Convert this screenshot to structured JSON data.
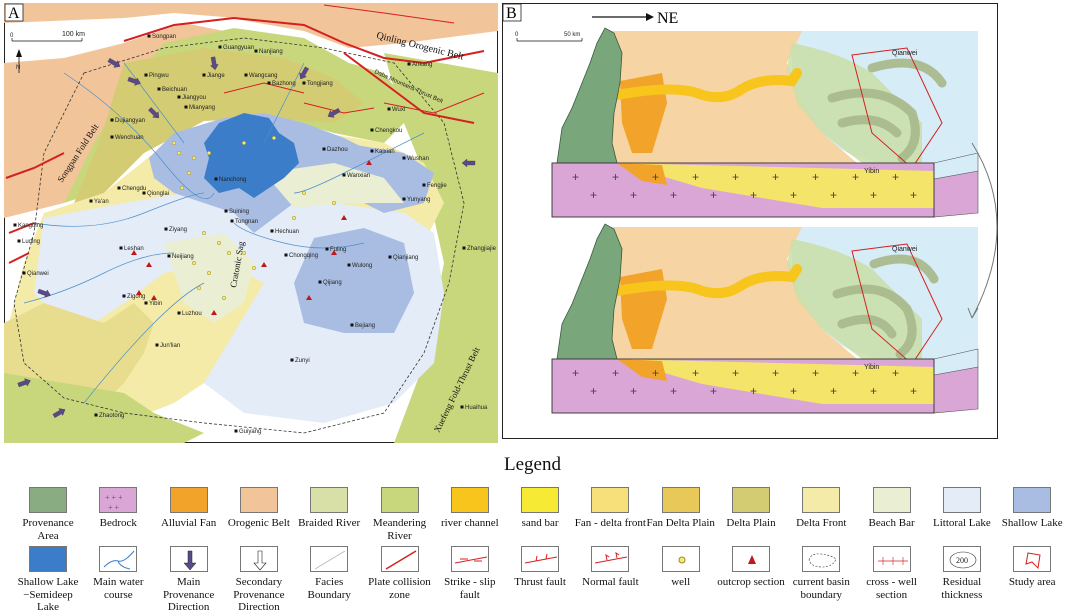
{
  "panel_a": {
    "label": "A",
    "scale": {
      "zero": "0",
      "end": "100 km"
    },
    "north": "N",
    "region_labels": [
      {
        "text": "Qinling Orogenic Belt",
        "style": "big"
      },
      {
        "text": "Daba Mountains Thrust Belt",
        "style": "rot"
      },
      {
        "text": "Songpan Fold Belt",
        "style": "rotbig"
      },
      {
        "text": "Cratonic Sag",
        "style": "rotbig"
      },
      {
        "text": "Xuefeng Fold-Thrust Belt",
        "style": "rotbig"
      }
    ],
    "towns": [
      "Songpan",
      "Pingwu",
      "Guangyuan",
      "Nanjiang",
      "Ankang",
      "Jiange",
      "Wangcang",
      "Beichuan",
      "Bazhong",
      "Tongjiang",
      "Mianyang",
      "Jiangyou",
      "Wenchuan",
      "Dujiangyan",
      "Chengdu",
      "Qionglai",
      "Ya'an",
      "Kangding",
      "Luding",
      "Ziyang",
      "Leshan",
      "Neijiang",
      "Yibin",
      "Zigong",
      "Luzhou",
      "Suining",
      "Nanchong",
      "Tongnan",
      "Hechuan",
      "Dazhou",
      "Wanxian",
      "Kaixian",
      "Wuxi",
      "Chengkou",
      "Wushan",
      "Yunyang",
      "Fengjie",
      "Fuling",
      "Chongqing",
      "Wulong",
      "Qianjiang",
      "Zhangjiajie",
      "Qijiang",
      "Bejiang",
      "Zunyi",
      "Jun'lian",
      "Zhaotong",
      "Qianwei",
      "Huaihua",
      "Guiyang"
    ]
  },
  "panel_b": {
    "label": "B",
    "direction": "NE",
    "scale": {
      "zero": "0",
      "end": "50 km"
    },
    "places": [
      "Qianwei",
      "Yibin",
      "Qianwei",
      "Yibin"
    ]
  },
  "legend": {
    "title": "Legend",
    "row1": [
      {
        "label": "Provenance Area",
        "swatch": "fill",
        "color": "#8aac82"
      },
      {
        "label": "Bedrock",
        "swatch": "bedrock",
        "color": "#d9a6d6"
      },
      {
        "label": "Alluvial Fan",
        "swatch": "fill",
        "color": "#f2a32a"
      },
      {
        "label": "Orogenic Belt",
        "swatch": "fill",
        "color": "#f2c49a"
      },
      {
        "label": "Braided River",
        "swatch": "fill",
        "color": "#d8e0a8"
      },
      {
        "label": "Meandering River",
        "swatch": "fill",
        "color": "#c9d77c"
      },
      {
        "label": "river channel",
        "swatch": "fill",
        "color": "#f7c51c"
      },
      {
        "label": "sand bar",
        "swatch": "fill",
        "color": "#f7ea35"
      },
      {
        "label": "Fan - delta front",
        "swatch": "fill",
        "color": "#f7e07a"
      },
      {
        "label": "Fan Delta Plain",
        "swatch": "fill",
        "color": "#e8c858"
      },
      {
        "label": "Delta Plain",
        "swatch": "fill",
        "color": "#d4cc72"
      },
      {
        "label": "Delta Front",
        "swatch": "fill",
        "color": "#f4eba9"
      },
      {
        "label": "Beach Bar",
        "swatch": "fill",
        "color": "#eaeed2"
      },
      {
        "label": "Littoral Lake",
        "swatch": "fill",
        "color": "#e4ecf8"
      },
      {
        "label": "Shallow Lake",
        "swatch": "fill",
        "color": "#a9bde2"
      }
    ],
    "row2": [
      {
        "label": "Shallow Lake −Semideep Lake",
        "swatch": "fill",
        "color": "#3b7dc8"
      },
      {
        "label": "Main water course",
        "swatch": "water"
      },
      {
        "label": "Main Provenance Direction",
        "swatch": "mainarrow"
      },
      {
        "label": "Secondary Provenance Direction",
        "swatch": "secarrow"
      },
      {
        "label": "Facies Boundary",
        "swatch": "facies"
      },
      {
        "label": "Plate collision zone",
        "swatch": "plate"
      },
      {
        "label": "Strike - slip fault",
        "swatch": "strike"
      },
      {
        "label": "Thrust fault",
        "swatch": "thrust"
      },
      {
        "label": "Normal fault",
        "swatch": "normal"
      },
      {
        "label": "well",
        "swatch": "well"
      },
      {
        "label": "outcrop section",
        "swatch": "outcrop"
      },
      {
        "label": "current basin boundary",
        "swatch": "basin"
      },
      {
        "label": "cross - well section",
        "swatch": "crosswell"
      },
      {
        "label": "Residual thickness",
        "swatch": "residual",
        "value": "200"
      },
      {
        "label": "Study area",
        "swatch": "study"
      }
    ]
  }
}
